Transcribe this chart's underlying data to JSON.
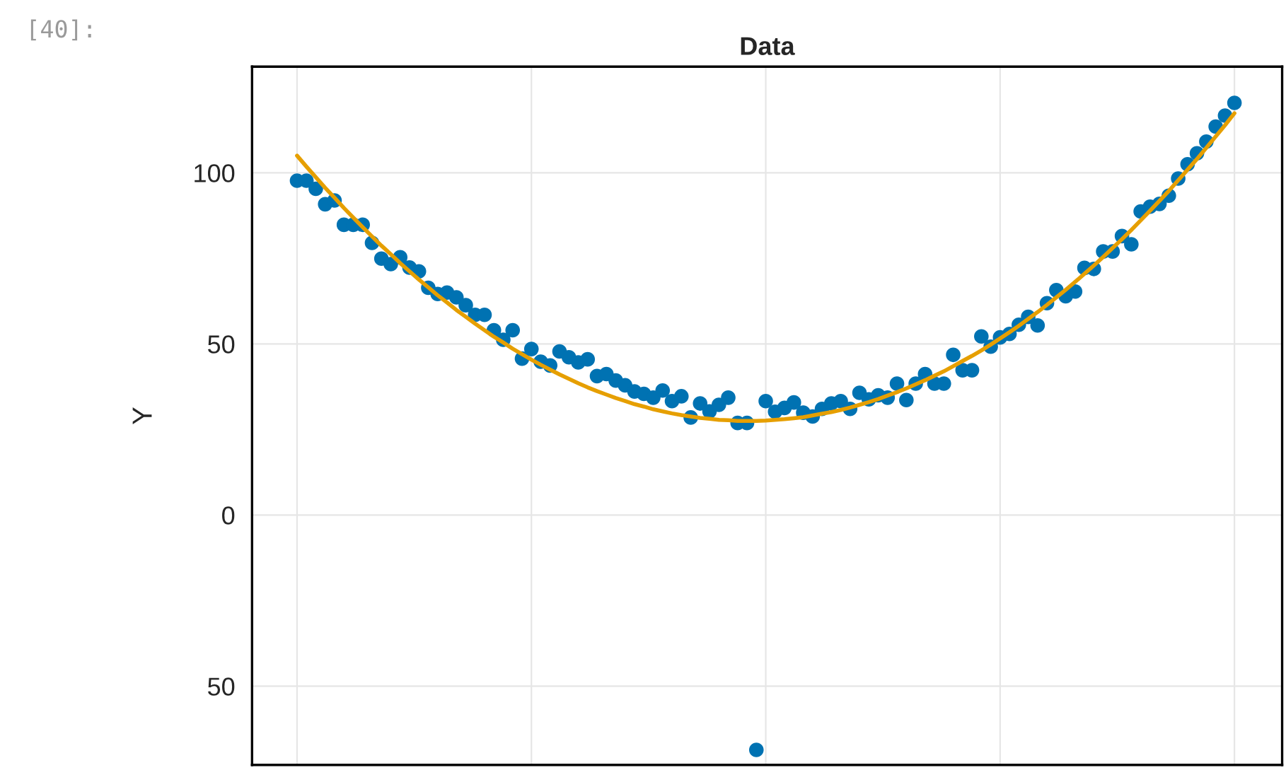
{
  "chart_data": {
    "type": "scatter",
    "title": "Data",
    "ylabel": "Y",
    "annotations": [
      "[40]:"
    ],
    "categories": [
      null,
      null,
      null,
      null,
      null,
      null,
      null,
      null,
      null,
      null,
      null,
      null,
      null,
      null,
      null,
      null,
      null,
      null,
      null,
      null,
      null,
      null,
      null,
      null,
      null,
      null,
      null,
      null,
      null,
      null,
      null,
      null,
      null,
      null,
      null,
      null,
      null,
      null,
      null,
      null,
      null,
      null,
      null,
      null,
      null,
      null,
      null,
      null,
      null,
      null,
      null,
      null,
      null,
      null,
      null,
      null,
      null,
      null,
      null,
      null,
      null,
      null,
      null,
      null,
      null,
      null,
      null,
      null,
      null,
      null,
      null,
      null,
      null,
      null,
      null,
      null,
      null,
      null,
      null,
      null,
      null,
      null,
      null,
      null,
      null,
      null,
      null,
      null,
      null,
      null,
      null,
      null,
      null,
      null,
      null,
      null,
      null,
      null,
      null,
      null,
      null
    ],
    "series": [
      {
        "color": "#0072b2",
        "marker": "circle",
        "values": [
          97.7,
          97.7,
          95.3,
          90.8,
          91.9,
          84.8,
          84.8,
          84.8,
          79.5,
          74.9,
          73.3,
          75.3,
          72.3,
          71.2,
          66.4,
          64.6,
          65.0,
          63.6,
          61.3,
          58.5,
          58.5,
          54.0,
          51.2,
          54.0,
          45.7,
          48.5,
          44.8,
          43.7,
          47.8,
          46.1,
          44.6,
          45.5,
          40.6,
          41.2,
          39.3,
          37.9,
          36.1,
          35.4,
          34.3,
          36.4,
          33.3,
          34.7,
          28.5,
          32.6,
          30.3,
          32.2,
          34.3,
          26.9,
          26.9,
          -68.6,
          33.3,
          30.2,
          31.3,
          32.9,
          29.9,
          28.8,
          31.0,
          32.6,
          33.3,
          31.0,
          35.7,
          33.8,
          35.0,
          34.3,
          38.4,
          33.6,
          38.4,
          41.2,
          38.4,
          38.4,
          46.8,
          42.3,
          42.3,
          52.2,
          49.2,
          51.9,
          52.9,
          55.6,
          57.9,
          55.4,
          61.9,
          65.7,
          63.9,
          65.3,
          72.2,
          71.9,
          77.0,
          77.0,
          81.5,
          79.1,
          88.7,
          90.1,
          90.9,
          93.3,
          98.3,
          102.5,
          105.7,
          109.1,
          113.5,
          116.7,
          120.4
        ]
      },
      {
        "type": "line",
        "color": "#e69f00",
        "values": [
          105.0,
          101.8,
          98.7,
          95.6,
          92.7,
          89.7,
          86.9,
          84.1,
          81.4,
          78.7,
          76.2,
          73.6,
          71.2,
          68.8,
          66.5,
          64.2,
          62.1,
          59.9,
          57.9,
          55.9,
          54.0,
          52.1,
          50.4,
          48.6,
          47.0,
          45.4,
          43.9,
          42.5,
          41.1,
          39.8,
          38.5,
          37.3,
          36.2,
          35.2,
          34.2,
          33.3,
          32.4,
          31.7,
          30.9,
          30.3,
          29.7,
          29.2,
          28.8,
          28.4,
          28.1,
          27.8,
          27.7,
          27.5,
          27.5,
          27.5,
          27.6,
          27.8,
          28.0,
          28.3,
          28.6,
          29.1,
          29.6,
          30.1,
          30.7,
          31.4,
          32.2,
          33.0,
          33.9,
          34.9,
          35.9,
          37.0,
          38.2,
          39.4,
          40.7,
          42.0,
          43.5,
          45.0,
          46.5,
          48.1,
          49.8,
          51.6,
          53.4,
          55.3,
          57.3,
          59.3,
          61.4,
          63.6,
          65.8,
          68.1,
          70.5,
          72.9,
          75.4,
          78.0,
          80.6,
          83.3,
          86.1,
          88.9,
          91.8,
          94.7,
          97.8,
          100.9,
          104.0,
          107.3,
          110.6,
          113.9,
          117.4
        ]
      }
    ],
    "ylim": [
      -73,
      131
    ],
    "yticks": [
      {
        "value": 100,
        "label": "100"
      },
      {
        "value": 50,
        "label": "50"
      },
      {
        "value": 0,
        "label": "0"
      },
      {
        "value": -50,
        "label": "50"
      }
    ],
    "grid": true
  }
}
